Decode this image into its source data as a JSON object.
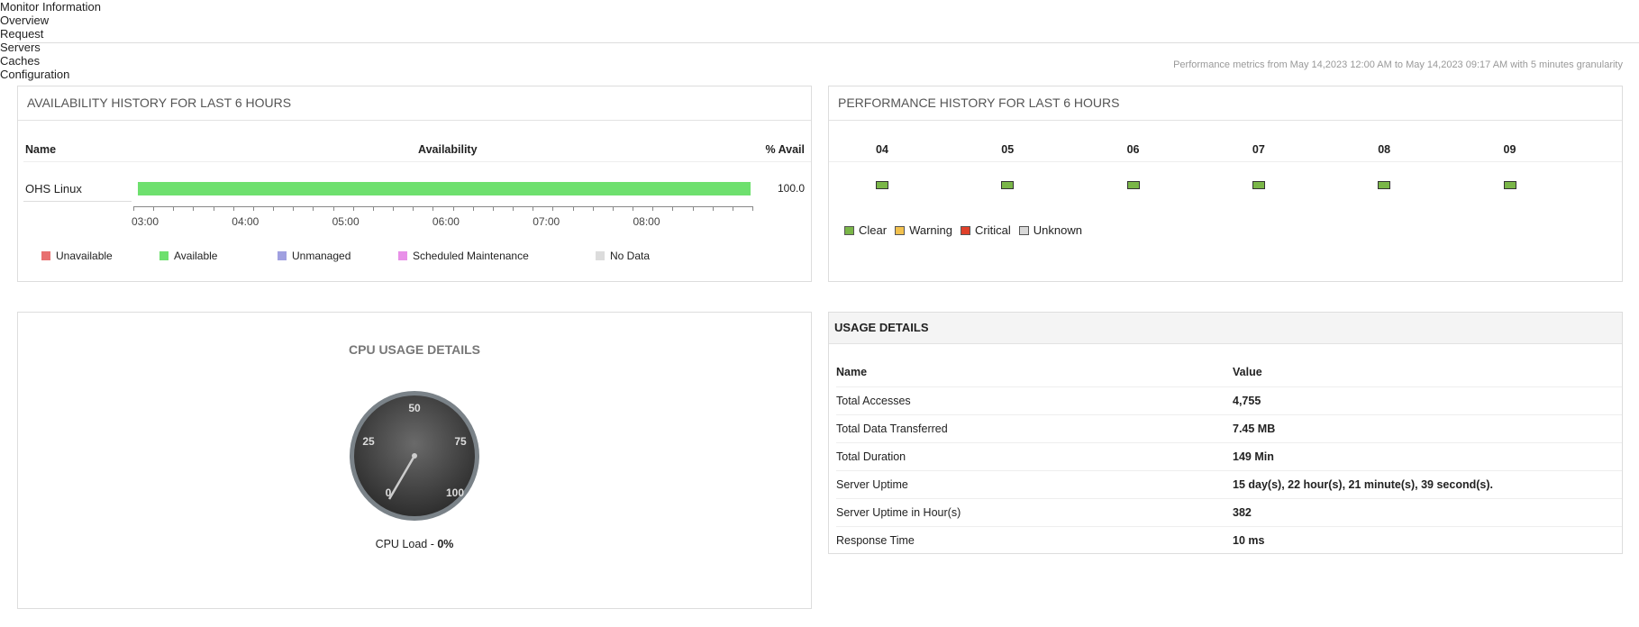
{
  "tabs": {
    "items": [
      "Monitor Information",
      "Overview",
      "Request",
      "Servers",
      "Caches",
      "Configuration"
    ],
    "active": 1
  },
  "metrics_note": "Performance metrics from May 14,2023 12:00 AM to May 14,2023 09:17 AM with 5 minutes granularity",
  "availability": {
    "title": "AVAILABILITY HISTORY FOR LAST 6 HOURS",
    "headers": [
      "Name",
      "Availability",
      "% Avail"
    ],
    "row": {
      "name": "OHS Linux",
      "avail": "100.0",
      "color": "#6ee06e"
    },
    "time_ticks": [
      "03:00",
      "04:00",
      "05:00",
      "06:00",
      "07:00",
      "08:00"
    ],
    "legend": [
      {
        "label": "Unavailable",
        "color": "#e87070"
      },
      {
        "label": "Available",
        "color": "#6ee06e"
      },
      {
        "label": "Unmanaged",
        "color": "#a0a0e0"
      },
      {
        "label": "Scheduled Maintenance",
        "color": "#e890e8"
      },
      {
        "label": "No Data",
        "color": "#dcdcdc"
      }
    ]
  },
  "performance": {
    "title": "PERFORMANCE HISTORY FOR LAST 6 HOURS",
    "hours": [
      "04",
      "05",
      "06",
      "07",
      "08",
      "09"
    ],
    "status_color": "#7ab648",
    "legend": [
      {
        "label": "Clear",
        "color": "#7ab648"
      },
      {
        "label": "Warning",
        "color": "#f2c14e"
      },
      {
        "label": "Critical",
        "color": "#e0402a"
      },
      {
        "label": "Unknown",
        "color": "#d8d8d8"
      }
    ]
  },
  "cpu": {
    "title": "CPU USAGE DETAILS",
    "gauge_ticks": [
      "0",
      "25",
      "50",
      "75",
      "100"
    ],
    "load_label": "CPU Load -",
    "load_value": "0%"
  },
  "usage": {
    "title": "USAGE DETAILS",
    "headers": [
      "Name",
      "Value"
    ],
    "rows": [
      [
        "Total Accesses",
        "4,755"
      ],
      [
        "Total Data Transferred",
        "7.45 MB"
      ],
      [
        "Total Duration",
        "149 Min"
      ],
      [
        "Server Uptime",
        "15 day(s), 22 hour(s), 21 minute(s), 39 second(s)."
      ],
      [
        "Server Uptime in Hour(s)",
        "382"
      ],
      [
        "Response Time",
        "10 ms"
      ]
    ]
  }
}
